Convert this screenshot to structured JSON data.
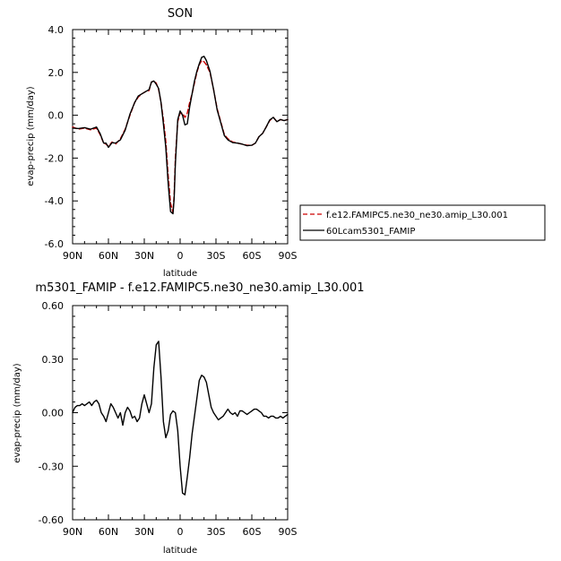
{
  "chart_data": [
    {
      "type": "line",
      "title": "SON",
      "xlabel": "latitude",
      "ylabel": "evap-precip (mm/day)",
      "xlim": [
        90,
        -90
      ],
      "ylim": [
        -6.0,
        4.0
      ],
      "x_ticks": [
        90,
        60,
        30,
        0,
        -30,
        -60,
        -90
      ],
      "x_tick_labels": [
        "90N",
        "60N",
        "30N",
        "0",
        "30S",
        "60S",
        "90S"
      ],
      "y_ticks": [
        -6,
        -4,
        -2,
        0,
        2,
        4
      ],
      "y_tick_labels": [
        "-6.0",
        "-4.0",
        "-2.0",
        "0.0",
        "2.0",
        "4.0"
      ],
      "legend_position": "right",
      "series": [
        {
          "name": "f.e12.FAMIPC5.ne30_ne30.amip_L30.001",
          "color": "#cc0000",
          "dash": "dashed",
          "x": [
            90,
            85,
            80,
            75,
            70,
            67,
            64,
            62,
            60,
            57,
            54,
            50,
            46,
            42,
            38,
            35,
            32,
            29,
            26,
            24,
            22,
            20,
            18,
            16,
            14,
            12,
            10,
            8,
            6,
            5,
            4,
            2,
            0,
            -2,
            -4,
            -6,
            -8,
            -10,
            -12,
            -14,
            -16,
            -18,
            -20,
            -22,
            -25,
            -28,
            -31,
            -34,
            -37,
            -40,
            -44,
            -48,
            -52,
            -56,
            -60,
            -63,
            -66,
            -69,
            -72,
            -75,
            -78,
            -81,
            -84,
            -87,
            -90
          ],
          "y": [
            -0.55,
            -0.65,
            -0.6,
            -0.68,
            -0.6,
            -0.9,
            -1.3,
            -1.35,
            -1.45,
            -1.25,
            -1.35,
            -1.1,
            -0.65,
            0.0,
            0.6,
            0.85,
            1.0,
            1.1,
            1.15,
            1.55,
            1.6,
            1.5,
            1.2,
            0.6,
            -0.2,
            -1.2,
            -2.8,
            -4.1,
            -4.55,
            -3.7,
            -2.0,
            -0.3,
            0.1,
            0.1,
            -0.1,
            0.1,
            0.6,
            1.0,
            1.5,
            2.0,
            2.35,
            2.55,
            2.5,
            2.35,
            2.0,
            1.2,
            0.3,
            -0.3,
            -0.9,
            -1.1,
            -1.25,
            -1.3,
            -1.35,
            -1.4,
            -1.4,
            -1.3,
            -1.0,
            -0.85,
            -0.55,
            -0.25,
            -0.1,
            -0.3,
            -0.2,
            -0.25,
            -0.2
          ]
        },
        {
          "name": "60Lcam5301_FAMIP",
          "color": "#000000",
          "dash": "solid",
          "x": [
            90,
            85,
            80,
            75,
            70,
            67,
            64,
            62,
            60,
            57,
            54,
            50,
            46,
            42,
            38,
            35,
            32,
            29,
            26,
            24,
            22,
            20,
            18,
            16,
            14,
            12,
            10,
            8,
            6,
            5,
            4,
            2,
            0,
            -2,
            -4,
            -6,
            -8,
            -10,
            -12,
            -14,
            -16,
            -18,
            -20,
            -22,
            -25,
            -28,
            -31,
            -34,
            -37,
            -40,
            -44,
            -48,
            -52,
            -56,
            -60,
            -63,
            -66,
            -69,
            -72,
            -75,
            -78,
            -81,
            -84,
            -87,
            -90
          ],
          "y": [
            -0.6,
            -0.62,
            -0.58,
            -0.65,
            -0.55,
            -0.85,
            -1.3,
            -1.3,
            -1.5,
            -1.28,
            -1.3,
            -1.15,
            -0.7,
            0.05,
            0.6,
            0.9,
            1.0,
            1.1,
            1.2,
            1.55,
            1.6,
            1.45,
            1.25,
            0.6,
            -0.4,
            -1.5,
            -3.2,
            -4.5,
            -4.6,
            -3.9,
            -2.3,
            -0.2,
            0.2,
            0.0,
            -0.45,
            -0.4,
            0.4,
            1.0,
            1.6,
            2.05,
            2.4,
            2.7,
            2.75,
            2.55,
            2.05,
            1.2,
            0.25,
            -0.35,
            -0.95,
            -1.15,
            -1.28,
            -1.3,
            -1.35,
            -1.42,
            -1.4,
            -1.3,
            -1.0,
            -0.85,
            -0.55,
            -0.22,
            -0.1,
            -0.3,
            -0.2,
            -0.25,
            -0.2
          ]
        }
      ]
    },
    {
      "type": "line",
      "title": "m5301_FAMIP - f.e12.FAMIPC5.ne30_ne30.amip_L30.001",
      "xlabel": "latitude",
      "ylabel": "evap-precip (mm/day)",
      "xlim": [
        90,
        -90
      ],
      "ylim": [
        -0.6,
        0.6
      ],
      "x_ticks": [
        90,
        60,
        30,
        0,
        -30,
        -60,
        -90
      ],
      "x_tick_labels": [
        "90N",
        "60N",
        "30N",
        "0",
        "30S",
        "60S",
        "90S"
      ],
      "y_ticks": [
        -0.6,
        -0.3,
        0.0,
        0.3,
        0.6
      ],
      "y_tick_labels": [
        "-0.60",
        "-0.30",
        "0.00",
        "0.30",
        "0.60"
      ],
      "series": [
        {
          "color": "#000000",
          "dash": "solid",
          "x": [
            90,
            88,
            86,
            84,
            82,
            80,
            78,
            76,
            74,
            72,
            70,
            68,
            66,
            64,
            62,
            60,
            58,
            56,
            54,
            52,
            50,
            48,
            46,
            44,
            42,
            40,
            38,
            36,
            34,
            32,
            30,
            28,
            26,
            24,
            22,
            20,
            18,
            16,
            14,
            12,
            10,
            8,
            6,
            4,
            2,
            0,
            -2,
            -4,
            -6,
            -8,
            -10,
            -12,
            -14,
            -16,
            -18,
            -20,
            -22,
            -24,
            -26,
            -28,
            -30,
            -32,
            -34,
            -36,
            -38,
            -40,
            -42,
            -44,
            -46,
            -48,
            -50,
            -52,
            -54,
            -56,
            -58,
            -60,
            -62,
            -64,
            -66,
            -68,
            -70,
            -72,
            -74,
            -76,
            -78,
            -80,
            -82,
            -84,
            -86,
            -88,
            -90
          ],
          "y": [
            0.0,
            0.03,
            0.04,
            0.04,
            0.05,
            0.04,
            0.05,
            0.06,
            0.04,
            0.06,
            0.07,
            0.05,
            0.0,
            -0.02,
            -0.05,
            0.0,
            0.05,
            0.03,
            0.0,
            -0.03,
            0.0,
            -0.07,
            0.0,
            0.03,
            0.01,
            -0.03,
            -0.02,
            -0.05,
            -0.03,
            0.05,
            0.1,
            0.05,
            0.0,
            0.05,
            0.25,
            0.38,
            0.4,
            0.2,
            -0.05,
            -0.14,
            -0.1,
            -0.01,
            0.01,
            0.0,
            -0.1,
            -0.3,
            -0.45,
            -0.46,
            -0.36,
            -0.25,
            -0.12,
            -0.02,
            0.08,
            0.18,
            0.21,
            0.2,
            0.17,
            0.1,
            0.03,
            0.0,
            -0.02,
            -0.04,
            -0.03,
            -0.02,
            0.0,
            0.02,
            0.0,
            -0.01,
            0.0,
            -0.02,
            0.01,
            0.01,
            0.0,
            -0.01,
            0.0,
            0.01,
            0.02,
            0.02,
            0.01,
            0.0,
            -0.02,
            -0.02,
            -0.03,
            -0.02,
            -0.02,
            -0.03,
            -0.03,
            -0.02,
            -0.03,
            -0.02,
            -0.01
          ]
        }
      ]
    }
  ]
}
